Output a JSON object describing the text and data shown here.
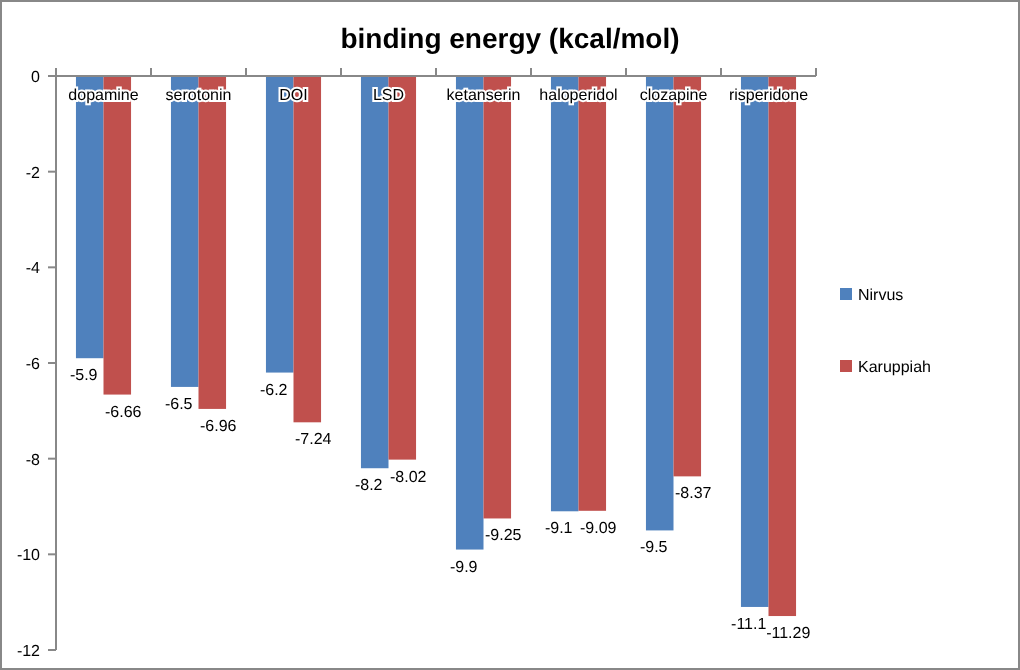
{
  "chart_data": {
    "type": "bar",
    "title": "binding energy (kcal/mol)",
    "categories": [
      "dopamine",
      "serotonin",
      "DOI",
      "LSD",
      "ketanserin",
      "haloperidol",
      "clozapine",
      "risperidone"
    ],
    "series": [
      {
        "name": "Nirvus",
        "color": "#4f81bd",
        "values": [
          -5.9,
          -6.5,
          -6.2,
          -8.2,
          -9.9,
          -9.1,
          -9.5,
          -11.1
        ]
      },
      {
        "name": "Karuppiah",
        "color": "#c0504d",
        "values": [
          -6.66,
          -6.96,
          -7.24,
          -8.02,
          -9.25,
          -9.09,
          -8.37,
          -11.29
        ]
      }
    ],
    "ylim": [
      -12,
      0
    ],
    "yticks": [
      -12,
      -10,
      -8,
      -6,
      -4,
      -2,
      0
    ],
    "data_labels": true,
    "legend": "right",
    "grid": false
  }
}
